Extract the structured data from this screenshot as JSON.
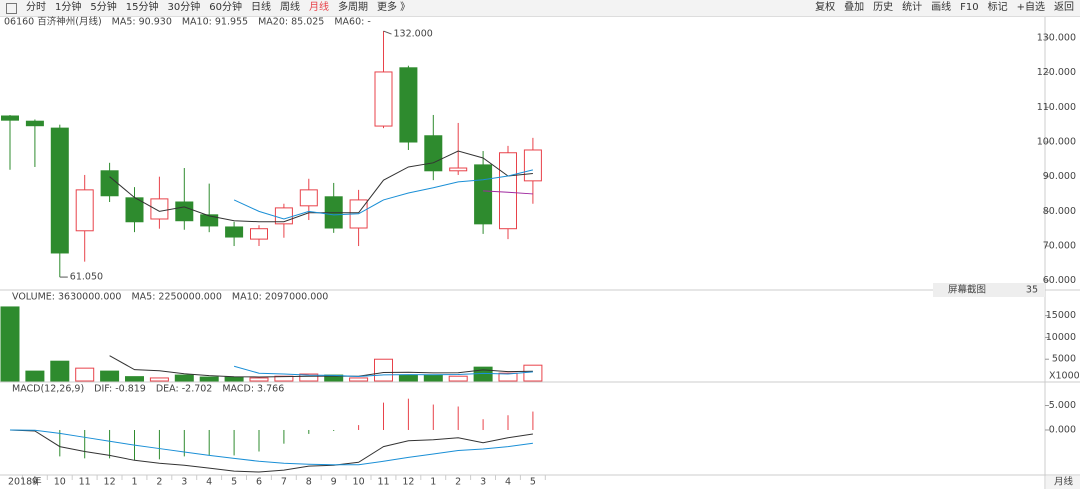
{
  "toolbar": {
    "left": [
      "分时",
      "1分钟",
      "5分钟",
      "15分钟",
      "30分钟",
      "60分钟",
      "日线",
      "周线",
      "月线",
      "多周期",
      "更多 》"
    ],
    "active": 8,
    "right": [
      "复权",
      "叠加",
      "历史",
      "统计",
      "画线",
      "F10",
      "标记",
      "+自选",
      "返回"
    ]
  },
  "overlay": {
    "label": "屏幕截图",
    "count": 35
  },
  "period_label": "月线",
  "chart_data": [
    {
      "type": "candlestick",
      "title": "06160 百济神州(月线)",
      "categories": [
        "2018年",
        "9",
        "10",
        "11",
        "12",
        "1",
        "2",
        "3",
        "4",
        "5",
        "6",
        "7",
        "8",
        "9",
        "10",
        "11",
        "12",
        "1",
        "2",
        "3",
        "4",
        "5"
      ],
      "open": [
        107.5,
        106,
        104,
        74.4,
        91.7,
        83.9,
        77.8,
        82.7,
        79,
        75.5,
        72,
        76.4,
        81.6,
        84.2,
        75.2,
        104.6,
        121.4,
        101.8,
        91.7,
        93.4,
        75,
        88.8
      ],
      "high": [
        107.8,
        106.5,
        105,
        90.5,
        94,
        87,
        90,
        92.5,
        88,
        77,
        76,
        82.2,
        89.4,
        88.2,
        86.2,
        132,
        122,
        107.8,
        105.5,
        97.4,
        98.9,
        101.2
      ],
      "low": [
        92,
        92.8,
        61.05,
        65.5,
        82.7,
        74,
        75,
        74.7,
        74,
        70,
        70,
        72.4,
        77.5,
        73.8,
        70,
        104,
        97.7,
        89,
        90.5,
        73.5,
        72,
        82.2
      ],
      "close": [
        106.3,
        104.7,
        68,
        86.2,
        84.5,
        77,
        83.6,
        77.3,
        75.8,
        72.6,
        75,
        81,
        86.2,
        75.2,
        83.3,
        120.2,
        100,
        91.7,
        92.5,
        76.4,
        96.9,
        97.7
      ],
      "up_color": "#e8424a",
      "down_color": "#2e8b2e",
      "series": [
        {
          "name": "MA5: 90.930",
          "color": "#333333",
          "values": [
            null,
            null,
            null,
            null,
            90,
            84,
            80,
            81.3,
            78.7,
            77.3,
            77,
            77,
            79.6,
            79.6,
            79.6,
            89,
            92.8,
            94,
            97.4,
            95.4,
            90.2,
            90.93
          ]
        },
        {
          "name": "MA10: 91.955",
          "color": "#1a8fd6",
          "values": [
            null,
            null,
            null,
            null,
            null,
            null,
            null,
            null,
            null,
            83.3,
            80,
            77.8,
            80,
            79,
            79.3,
            83.3,
            85.3,
            86.8,
            88.5,
            89.1,
            90.2,
            91.955
          ]
        },
        {
          "name": "MA20: 85.025",
          "color": "#a02aa0",
          "values": [
            null,
            null,
            null,
            null,
            null,
            null,
            null,
            null,
            null,
            null,
            null,
            null,
            null,
            null,
            null,
            null,
            null,
            null,
            null,
            85.9,
            85.5,
            85.025
          ]
        },
        {
          "name": "MA60: -",
          "color": "#999999",
          "values": [
            null,
            null,
            null,
            null,
            null,
            null,
            null,
            null,
            null,
            null,
            null,
            null,
            null,
            null,
            null,
            null,
            null,
            null,
            null,
            null,
            null,
            null
          ]
        }
      ],
      "annotations": [
        {
          "label": "132.000",
          "value": 132
        },
        {
          "label": "61.050",
          "value": 61.05
        }
      ],
      "ylim": [
        57.9,
        132.3
      ],
      "yticks": [
        {
          "value": 60,
          "label": "60.000"
        },
        {
          "value": 70,
          "label": "70.000"
        },
        {
          "value": 80,
          "label": "80.000"
        },
        {
          "value": 90,
          "label": "90.000"
        },
        {
          "value": 100,
          "label": "100.000"
        },
        {
          "value": 110,
          "label": "110.000"
        },
        {
          "value": 120,
          "label": "120.000"
        },
        {
          "value": 130,
          "label": "130.000"
        }
      ]
    },
    {
      "type": "bar",
      "title": "VOLUME: 3630000.000",
      "unit_label": "X1000",
      "values": [
        17000,
        2270,
        4545,
        2950,
        2270,
        1000,
        700,
        1360,
        900,
        900,
        700,
        1100,
        1600,
        1360,
        700,
        5000,
        1360,
        1360,
        1100,
        3180,
        1800,
        3630
      ],
      "series": [
        {
          "name": "MA5: 2250000.000",
          "color": "#333333",
          "values": [
            null,
            null,
            null,
            null,
            5807,
            2607,
            2353,
            1656,
            1246,
            972,
            932,
            992,
            1092,
            1132,
            1092,
            1952,
            2004,
            1876,
            1904,
            2540,
            2160,
            2250
          ]
        },
        {
          "name": "MA10: 2097000.000",
          "color": "#1a8fd6",
          "values": [
            null,
            null,
            null,
            null,
            null,
            null,
            null,
            null,
            null,
            3390,
            1790,
            1606,
            1348,
            1279,
            1036,
            1392,
            1458,
            1434,
            1497,
            1745,
            1615,
            2097
          ]
        }
      ],
      "ylim": [
        0,
        20200
      ],
      "yticks": [
        5000,
        10000,
        15000
      ]
    },
    {
      "type": "macd",
      "title": "MACD(12,26,9)",
      "series": [
        {
          "name": "DIF: -0.819",
          "color": "#333333",
          "values": [
            0,
            -0.2,
            -3.4,
            -4.4,
            -5.2,
            -6.2,
            -6.8,
            -7.2,
            -7.8,
            -8.4,
            -8.6,
            -8.2,
            -7.4,
            -7.2,
            -6.6,
            -3.4,
            -2.2,
            -2,
            -1.6,
            -2.6,
            -1.6,
            -0.819
          ]
        },
        {
          "name": "DEA: -2.702",
          "color": "#1a8fd6",
          "values": [
            0,
            -0.05,
            -0.7,
            -1.5,
            -2.3,
            -3.1,
            -3.8,
            -4.5,
            -5.2,
            -5.8,
            -6.4,
            -6.8,
            -7,
            -7.1,
            -7.1,
            -6.4,
            -5.6,
            -4.9,
            -4.2,
            -3.9,
            -3.4,
            -2.702
          ]
        }
      ],
      "histogram": {
        "name": "MACD: 3.766",
        "color": "#a02aa0",
        "values": [
          0,
          -0.3,
          -5.4,
          -5.8,
          -5.8,
          -6.2,
          -6,
          -5.4,
          -5.2,
          -5.2,
          -4.4,
          -2.8,
          -0.8,
          -0.2,
          1,
          5.6,
          6.4,
          5.2,
          4.8,
          2.2,
          3,
          3.766
        ]
      },
      "ylim": [
        -9,
        9.4
      ],
      "yticks": [
        {
          "value": 0,
          "label": "0.000"
        },
        {
          "value": 5,
          "label": "5.000"
        }
      ]
    }
  ]
}
